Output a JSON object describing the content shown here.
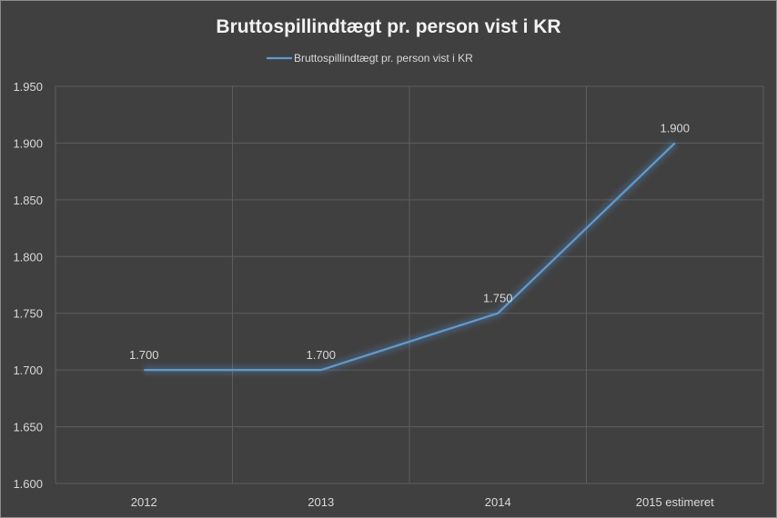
{
  "chart_data": {
    "type": "line",
    "title": "Bruttospillindtægt pr. person vist i KR",
    "categories": [
      "2012",
      "2013",
      "2014",
      "2015 estimeret"
    ],
    "series": [
      {
        "name": "Bruttospillindtægt pr. person vist i KR",
        "values": [
          1700,
          1700,
          1750,
          1900
        ],
        "value_labels": [
          "1.700",
          "1.700",
          "1.750",
          "1.900"
        ],
        "color": "#5b9bd5"
      }
    ],
    "ylim": [
      1600,
      1950
    ],
    "yticks": [
      1600,
      1650,
      1700,
      1750,
      1800,
      1850,
      1900,
      1950
    ],
    "ytick_labels": [
      "1.600",
      "1.650",
      "1.700",
      "1.750",
      "1.800",
      "1.850",
      "1.900",
      "1.950"
    ],
    "grid": true,
    "legend_position": "top"
  }
}
